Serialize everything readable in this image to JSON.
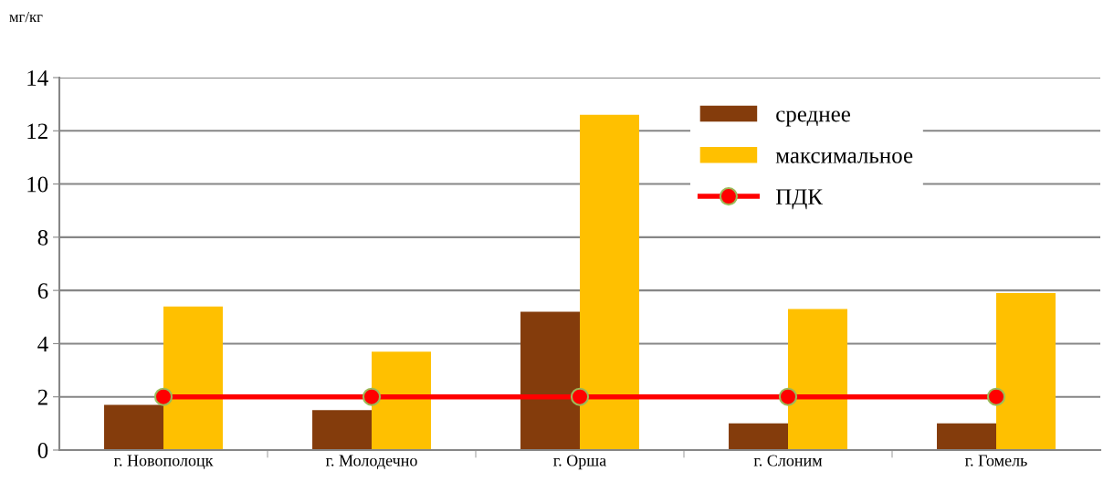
{
  "chart_data": {
    "type": "bar",
    "ylabel": "мг/кг",
    "categories": [
      "г. Новополоцк",
      "г. Молодечно",
      "г. Орша",
      "г. Слоним",
      "г. Гомель"
    ],
    "series": [
      {
        "name": "среднее",
        "color": "#843c0c",
        "values": [
          1.7,
          1.5,
          5.2,
          1.0,
          1.0
        ]
      },
      {
        "name": "максимальное",
        "color": "#ffc000",
        "values": [
          5.4,
          3.7,
          12.6,
          5.3,
          5.9
        ]
      },
      {
        "name": "ПДК",
        "type": "line",
        "color": "#ff0000",
        "marker": "circle",
        "values": [
          2,
          2,
          2,
          2,
          2
        ]
      }
    ],
    "ylim": [
      0,
      14
    ],
    "yticks": [
      0,
      2,
      4,
      6,
      8,
      10,
      12,
      14
    ],
    "grid": "y",
    "legend": "top right"
  }
}
